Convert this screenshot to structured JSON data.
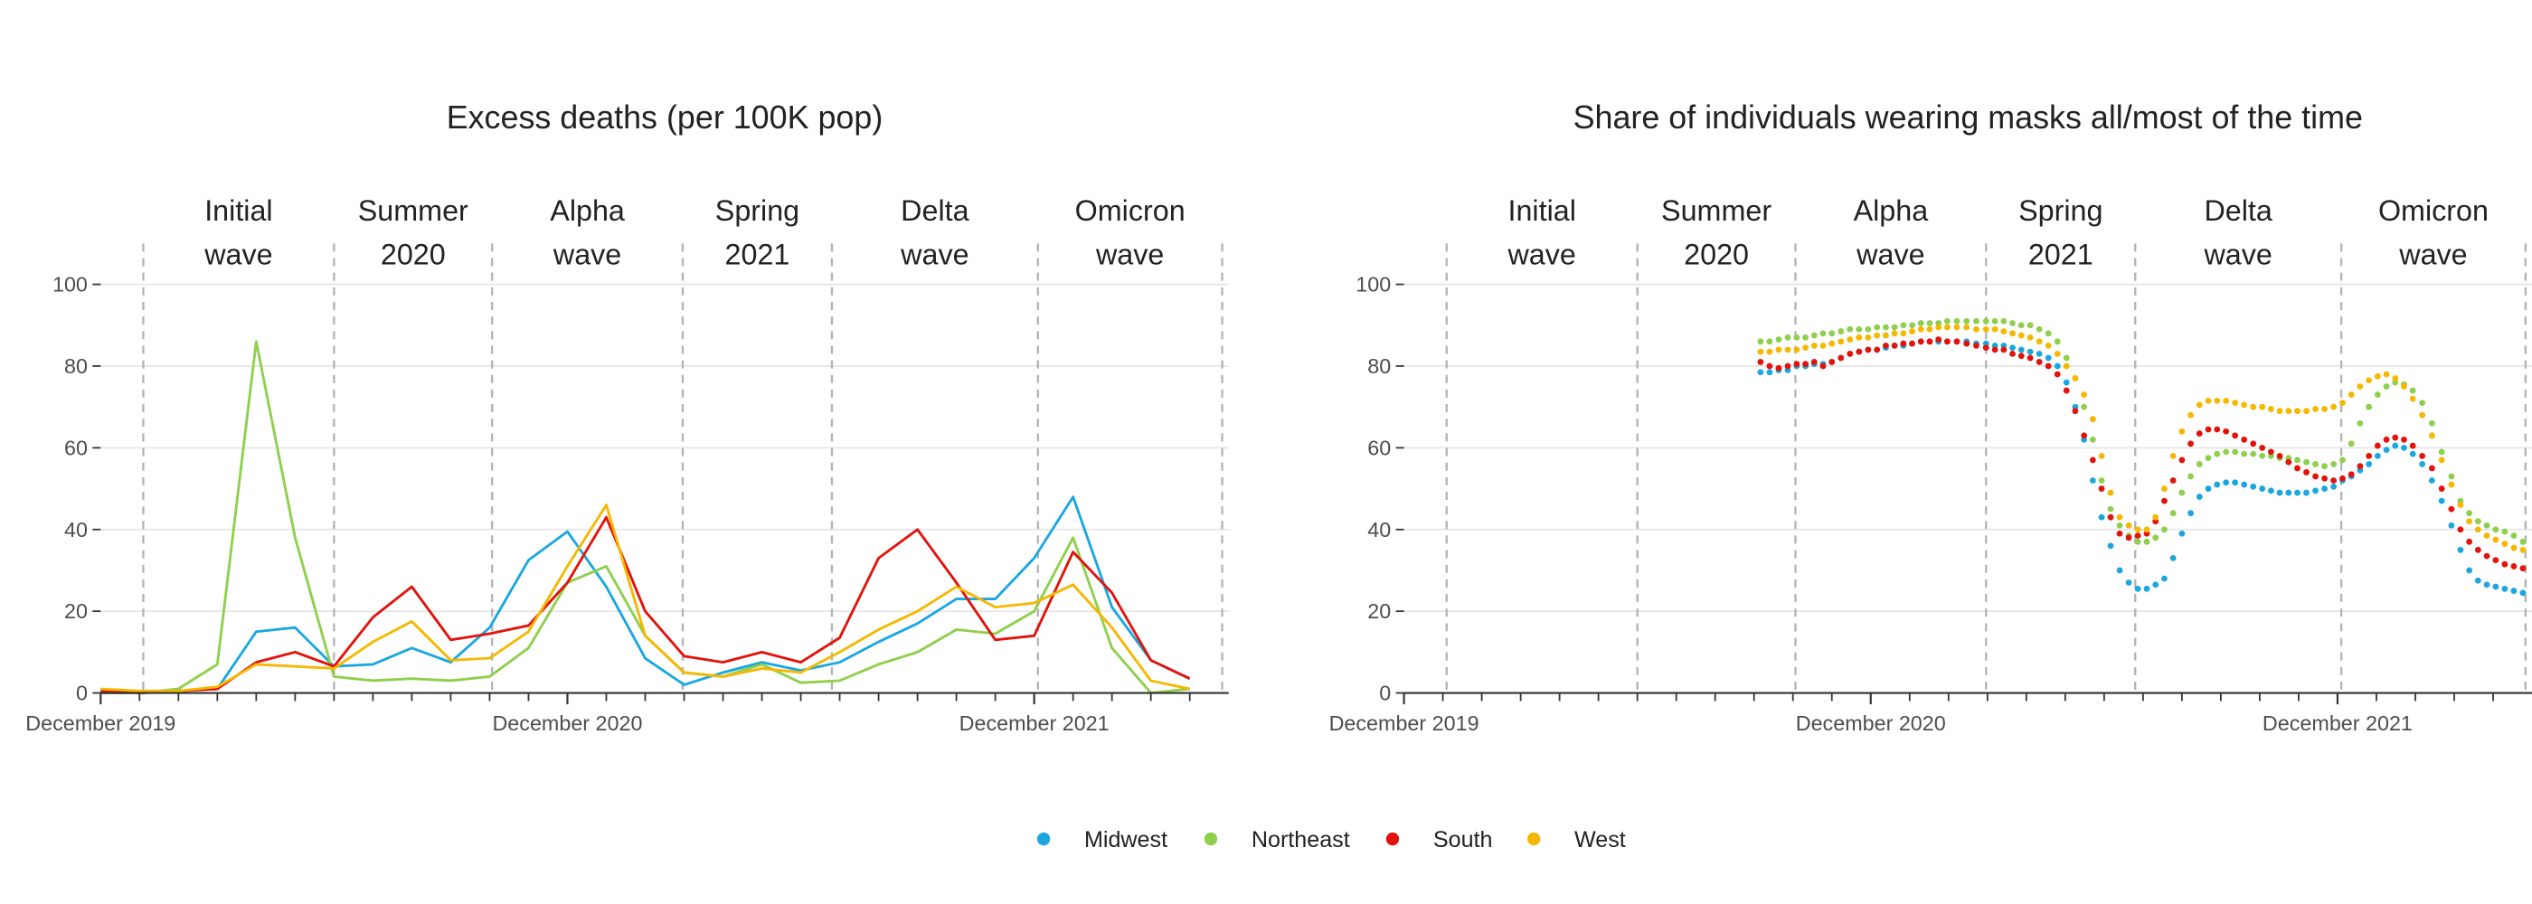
{
  "chart_data": [
    {
      "type": "line",
      "title": "Excess deaths (per 100K pop)",
      "x": [
        "2019-12",
        "2020-01",
        "2020-02",
        "2020-03",
        "2020-04",
        "2020-05",
        "2020-06",
        "2020-07",
        "2020-08",
        "2020-09",
        "2020-10",
        "2020-11",
        "2020-12",
        "2021-01",
        "2021-02",
        "2021-03",
        "2021-04",
        "2021-05",
        "2021-06",
        "2021-07",
        "2021-08",
        "2021-09",
        "2021-10",
        "2021-11",
        "2021-12",
        "2022-01",
        "2022-02",
        "2022-03",
        "2022-04"
      ],
      "series": [
        {
          "name": "Midwest",
          "color": "#1aa7e0",
          "values": [
            0.5,
            0,
            0.5,
            1,
            15,
            16,
            6.5,
            7,
            11,
            7.5,
            16,
            32.5,
            39.5,
            26,
            8.5,
            2,
            5,
            7.5,
            5.5,
            7.5,
            12.5,
            17,
            23,
            23,
            33,
            48,
            21,
            8,
            3.5
          ]
        },
        {
          "name": "Northeast",
          "color": "#8ecf4c",
          "values": [
            0,
            0,
            1,
            7,
            86,
            38,
            4,
            3,
            3.5,
            3,
            4,
            11,
            27,
            31,
            14,
            5,
            4,
            7,
            2.5,
            3,
            7,
            10,
            15.5,
            14.5,
            20,
            38,
            11,
            0,
            1
          ]
        },
        {
          "name": "South",
          "color": "#e3120b",
          "values": [
            0.5,
            0,
            0.5,
            1,
            7.5,
            10,
            6.5,
            18.5,
            26,
            13,
            14.5,
            16.5,
            27,
            43,
            20,
            9,
            7.5,
            10,
            7.5,
            13.5,
            33,
            40,
            27,
            13,
            14,
            34.5,
            24.5,
            8,
            3.5
          ]
        },
        {
          "name": "West",
          "color": "#f5b800",
          "values": [
            1,
            0.5,
            0.5,
            1.5,
            7,
            6.5,
            6,
            12.5,
            17.5,
            8,
            8.5,
            15,
            31,
            46,
            14,
            5,
            4,
            6,
            5,
            10,
            15.5,
            20,
            26,
            21,
            22,
            26.5,
            16,
            3,
            1
          ]
        }
      ],
      "xlim": [
        "2019-12-01",
        "2022-05-01"
      ],
      "xticks": [
        {
          "value": "2019-12",
          "label": "December 2019"
        },
        {
          "value": "2020-12",
          "label": "December 2020"
        },
        {
          "value": "2021-12",
          "label": "December 2021"
        }
      ],
      "xminorticks": [
        "2020-01",
        "2020-02",
        "2020-03",
        "2020-04",
        "2020-05",
        "2020-06",
        "2020-07",
        "2020-08",
        "2020-09",
        "2020-10",
        "2020-11",
        "2021-01",
        "2021-02",
        "2021-03",
        "2021-04",
        "2021-05",
        "2021-06",
        "2021-07",
        "2021-08",
        "2021-09",
        "2021-10",
        "2021-11",
        "2022-01",
        "2022-02",
        "2022-03",
        "2022-04"
      ],
      "ylim": [
        0,
        110
      ],
      "yticks": [
        0,
        20,
        40,
        60,
        80,
        100
      ],
      "grid": true,
      "waves": {
        "labels": [
          [
            "Initial",
            "wave"
          ],
          [
            "Summer",
            "2020"
          ],
          [
            "Alpha",
            "wave"
          ],
          [
            "Spring",
            "2021"
          ],
          [
            "Delta",
            "wave"
          ],
          [
            "Omicron",
            "wave"
          ]
        ],
        "boundaries": [
          "2020-01-04",
          "2020-06-01",
          "2020-10-03",
          "2021-02-28",
          "2021-06-25",
          "2021-12-04",
          "2022-04-26"
        ]
      },
      "legend": "bottom"
    },
    {
      "type": "scatter",
      "title": "Share of individuals wearing masks all/most of the time",
      "x": [
        "2020-09-06",
        "2020-09-13",
        "2020-09-20",
        "2020-09-27",
        "2020-10-04",
        "2020-10-11",
        "2020-10-18",
        "2020-10-25",
        "2020-11-01",
        "2020-11-08",
        "2020-11-15",
        "2020-11-22",
        "2020-11-29",
        "2020-12-06",
        "2020-12-13",
        "2020-12-20",
        "2020-12-27",
        "2021-01-03",
        "2021-01-10",
        "2021-01-17",
        "2021-01-24",
        "2021-01-31",
        "2021-02-07",
        "2021-02-14",
        "2021-02-21",
        "2021-02-28",
        "2021-03-07",
        "2021-03-14",
        "2021-03-21",
        "2021-03-28",
        "2021-04-04",
        "2021-04-11",
        "2021-04-18",
        "2021-04-25",
        "2021-05-02",
        "2021-05-09",
        "2021-05-16",
        "2021-05-23",
        "2021-05-30",
        "2021-06-06",
        "2021-06-13",
        "2021-06-20",
        "2021-06-27",
        "2021-07-04",
        "2021-07-11",
        "2021-07-18",
        "2021-07-25",
        "2021-08-01",
        "2021-08-08",
        "2021-08-15",
        "2021-08-22",
        "2021-08-29",
        "2021-09-05",
        "2021-09-12",
        "2021-09-19",
        "2021-09-26",
        "2021-10-03",
        "2021-10-10",
        "2021-10-17",
        "2021-10-24",
        "2021-10-31",
        "2021-11-07",
        "2021-11-14",
        "2021-11-21",
        "2021-11-28",
        "2021-12-05",
        "2021-12-12",
        "2021-12-19",
        "2021-12-26",
        "2022-01-02",
        "2022-01-09",
        "2022-01-16",
        "2022-01-23",
        "2022-01-30",
        "2022-02-06",
        "2022-02-13",
        "2022-02-20",
        "2022-02-27",
        "2022-03-06",
        "2022-03-13",
        "2022-03-20",
        "2022-03-27",
        "2022-04-03",
        "2022-04-10",
        "2022-04-17",
        "2022-04-24"
      ],
      "series": [
        {
          "name": "Midwest",
          "color": "#1aa7e0",
          "values": [
            78.5,
            78.5,
            79,
            79,
            80,
            80,
            80.5,
            80.5,
            81,
            82,
            83,
            83.5,
            84,
            84,
            84.5,
            85,
            85,
            85.5,
            86,
            86,
            86,
            86,
            86,
            86,
            85.5,
            85.5,
            85,
            85,
            84.5,
            84,
            83.5,
            83,
            82,
            80,
            76,
            70,
            62,
            52,
            43,
            36,
            30,
            27,
            25.5,
            25.5,
            26.5,
            28,
            33,
            39,
            44,
            48,
            50,
            51,
            51.5,
            51.5,
            51,
            50.5,
            50,
            49.5,
            49,
            49,
            49,
            49,
            49.5,
            50,
            50.5,
            52,
            53,
            54.5,
            56,
            58,
            59.5,
            60.5,
            60,
            58.5,
            56,
            52,
            47,
            41,
            35,
            30,
            27.5,
            26.5,
            26,
            25.5,
            25,
            24.5
          ]
        },
        {
          "name": "Northeast",
          "color": "#8ecf4c",
          "values": [
            86,
            86,
            86.5,
            87,
            87,
            87,
            87.5,
            88,
            88,
            88.5,
            89,
            89,
            89,
            89.5,
            89.5,
            89.5,
            90,
            90,
            90.5,
            90.5,
            90.5,
            91,
            91,
            91,
            91,
            91,
            91,
            91,
            90.5,
            90,
            90,
            89,
            88,
            86,
            82,
            77,
            70,
            62,
            52,
            45,
            41,
            38.5,
            37,
            37,
            38,
            40,
            44,
            49,
            53,
            56,
            57.5,
            58.5,
            59,
            59,
            58.5,
            58.5,
            58,
            58,
            57.5,
            57.5,
            57,
            56.5,
            56,
            55.5,
            56,
            57,
            61,
            66,
            70,
            73,
            75,
            76,
            75.5,
            74,
            71,
            66,
            59,
            53,
            47,
            44,
            42,
            41,
            40,
            39.5,
            38.5,
            37
          ]
        },
        {
          "name": "South",
          "color": "#e3120b",
          "values": [
            81,
            80,
            79.5,
            80,
            80.5,
            80.5,
            81,
            80,
            81,
            82,
            83,
            83.5,
            84,
            84,
            85,
            85,
            85.5,
            85.5,
            86,
            86,
            86.5,
            86,
            86,
            85.5,
            85,
            84.5,
            84,
            84,
            83,
            82.5,
            82,
            81,
            80,
            78,
            74,
            69,
            63,
            57,
            50,
            43,
            39,
            38,
            38.5,
            39,
            42,
            47,
            52,
            57,
            61,
            63.5,
            64.5,
            64.5,
            64,
            63,
            62,
            61,
            60,
            59,
            58,
            56.5,
            55,
            54,
            53,
            52.5,
            52,
            52.5,
            53.5,
            55.5,
            58,
            60.5,
            62,
            62.5,
            62,
            60.5,
            58,
            55,
            50,
            45,
            40,
            37,
            35,
            33.5,
            32.5,
            31.5,
            31,
            30.5
          ]
        },
        {
          "name": "West",
          "color": "#f5b800",
          "values": [
            83.5,
            83.5,
            84,
            84,
            84,
            84.5,
            85,
            85,
            85.5,
            86,
            86.5,
            87,
            87,
            87.5,
            87.5,
            88,
            88,
            88.5,
            89,
            89,
            89.5,
            89.5,
            89.5,
            89.5,
            89,
            89,
            89,
            88.5,
            88,
            87.5,
            87,
            86,
            85,
            83,
            80,
            77,
            73,
            67,
            58,
            49,
            43,
            41,
            40,
            40,
            43,
            50,
            58,
            64,
            68,
            70.5,
            71.5,
            71.5,
            71.5,
            71,
            70.5,
            70,
            70,
            69.5,
            69,
            69,
            69,
            69,
            69.5,
            69.5,
            70,
            71,
            73,
            75,
            76.5,
            77.5,
            78,
            77,
            75,
            72,
            68,
            63,
            57,
            51,
            46,
            42,
            40,
            38.5,
            37.5,
            36.5,
            35.5,
            35
          ]
        }
      ],
      "xlim": [
        "2019-12-01",
        "2022-05-01"
      ],
      "xticks": [
        {
          "value": "2019-12",
          "label": "December 2019"
        },
        {
          "value": "2020-12",
          "label": "December 2020"
        },
        {
          "value": "2021-12",
          "label": "December 2021"
        }
      ],
      "xminorticks": [
        "2020-01",
        "2020-02",
        "2020-03",
        "2020-04",
        "2020-05",
        "2020-06",
        "2020-07",
        "2020-08",
        "2020-09",
        "2020-10",
        "2020-11",
        "2021-01",
        "2021-02",
        "2021-03",
        "2021-04",
        "2021-05",
        "2021-06",
        "2021-07",
        "2021-08",
        "2021-09",
        "2021-10",
        "2021-11",
        "2022-01",
        "2022-02",
        "2022-03",
        "2022-04"
      ],
      "ylim": [
        0,
        110
      ],
      "yticks": [
        0,
        20,
        40,
        60,
        80,
        100
      ],
      "grid": true,
      "waves": {
        "labels": [
          [
            "Initial",
            "wave"
          ],
          [
            "Summer",
            "2020"
          ],
          [
            "Alpha",
            "wave"
          ],
          [
            "Spring",
            "2021"
          ],
          [
            "Delta",
            "wave"
          ],
          [
            "Omicron",
            "wave"
          ]
        ],
        "boundaries": [
          "2020-01-04",
          "2020-06-01",
          "2020-10-03",
          "2021-02-28",
          "2021-06-25",
          "2021-12-04",
          "2022-04-26"
        ]
      },
      "legend": "bottom"
    }
  ]
}
